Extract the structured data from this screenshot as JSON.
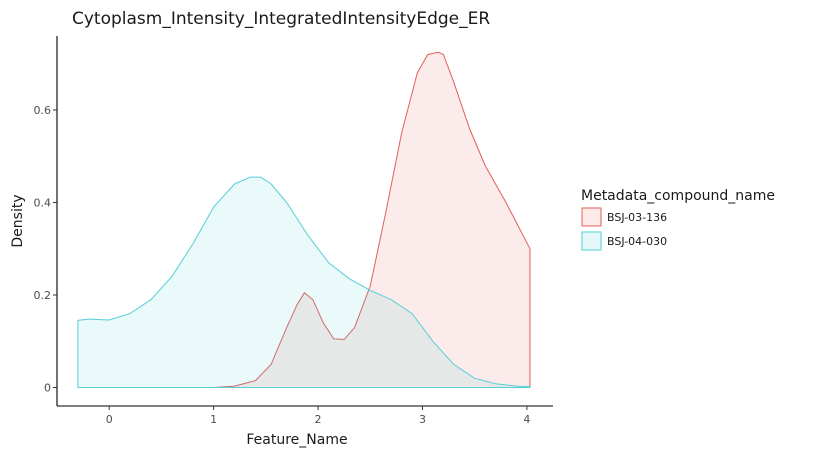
{
  "chart_data": {
    "type": "area",
    "title": "Cytoplasm_Intensity_IntegratedIntensityEdge_ER",
    "xlabel": "Feature_Name",
    "ylabel": "Density",
    "xlim": [
      -0.5,
      4.25
    ],
    "ylim": [
      -0.04,
      0.76
    ],
    "xticks": [
      0,
      1,
      2,
      3,
      4
    ],
    "yticks": [
      0,
      0.2,
      0.4,
      0.6
    ],
    "ytick_labels": [
      "0",
      "0.2",
      "0.4",
      "0.6"
    ],
    "grid": false,
    "legend": {
      "title": "Metadata_compound_name",
      "position": "right"
    },
    "series": [
      {
        "name": "BSJ-03-136",
        "color": "#e0605a",
        "fill": "#fbeae8",
        "x": [
          -0.3,
          0.5,
          1.0,
          1.2,
          1.4,
          1.55,
          1.7,
          1.8,
          1.87,
          1.95,
          2.05,
          2.15,
          2.25,
          2.35,
          2.5,
          2.65,
          2.8,
          2.95,
          3.05,
          3.15,
          3.2,
          3.3,
          3.45,
          3.6,
          3.8,
          4.03
        ],
        "y": [
          0.0,
          0.0,
          0.0,
          0.003,
          0.015,
          0.05,
          0.13,
          0.18,
          0.205,
          0.19,
          0.14,
          0.105,
          0.104,
          0.13,
          0.22,
          0.38,
          0.55,
          0.68,
          0.72,
          0.725,
          0.72,
          0.66,
          0.56,
          0.48,
          0.4,
          0.3
        ]
      },
      {
        "name": "BSJ-04-030",
        "color": "#55cfd8",
        "fill": "#e5f7f8",
        "x": [
          -0.3,
          -0.2,
          0.0,
          0.2,
          0.4,
          0.6,
          0.8,
          1.0,
          1.2,
          1.35,
          1.45,
          1.55,
          1.7,
          1.9,
          2.1,
          2.3,
          2.5,
          2.7,
          2.9,
          3.1,
          3.3,
          3.5,
          3.7,
          3.9,
          4.03
        ],
        "y": [
          0.145,
          0.148,
          0.146,
          0.16,
          0.19,
          0.24,
          0.31,
          0.39,
          0.44,
          0.455,
          0.455,
          0.44,
          0.4,
          0.33,
          0.27,
          0.235,
          0.21,
          0.19,
          0.16,
          0.1,
          0.05,
          0.02,
          0.008,
          0.003,
          0.002
        ]
      }
    ]
  }
}
